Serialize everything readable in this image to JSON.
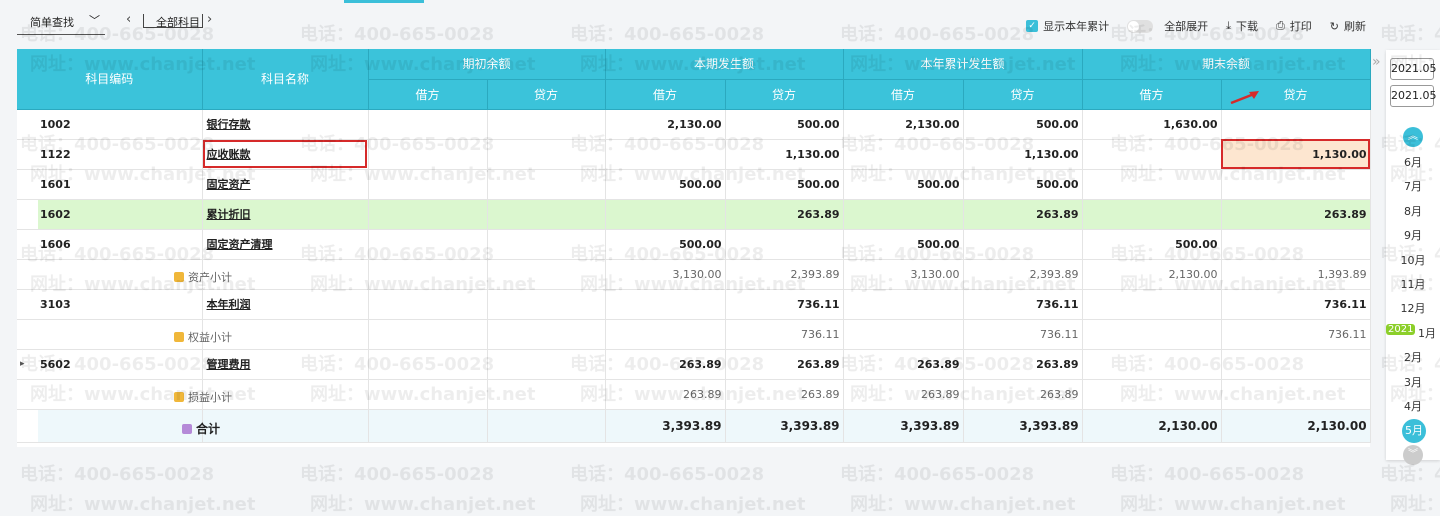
{
  "toolbar": {
    "search_label": "简单查找",
    "subject_label": "全部科目",
    "show_year_label": "显示本年累计",
    "show_year_checked": true,
    "expand_all_label": "全部展开",
    "expand_all_on": false,
    "download_label": "下载",
    "print_label": "打印",
    "refresh_label": "刷新"
  },
  "table": {
    "headers": {
      "code": "科目编码",
      "name": "科目名称",
      "groups": [
        "期初余额",
        "本期发生额",
        "本年累计发生额",
        "期末余额"
      ],
      "debit": "借方",
      "credit": "贷方"
    },
    "rows": [
      {
        "type": "account",
        "code": "1002",
        "name": "银行存款",
        "values": [
          "",
          "",
          "2,130.00",
          "500.00",
          "2,130.00",
          "500.00",
          "1,630.00",
          ""
        ]
      },
      {
        "type": "account",
        "code": "1122",
        "name": "应收账款",
        "highlight": true,
        "values": [
          "",
          "",
          "",
          "1,130.00",
          "",
          "1,130.00",
          "",
          "1,130.00"
        ]
      },
      {
        "type": "account",
        "code": "1601",
        "name": "固定资产",
        "values": [
          "",
          "",
          "500.00",
          "500.00",
          "500.00",
          "500.00",
          "",
          ""
        ]
      },
      {
        "type": "account",
        "code": "1602",
        "name": "累计折旧",
        "green": true,
        "values": [
          "",
          "",
          "",
          "263.89",
          "",
          "263.89",
          "",
          "263.89"
        ]
      },
      {
        "type": "account",
        "code": "1606",
        "name": "固定资产清理",
        "values": [
          "",
          "",
          "500.00",
          "",
          "500.00",
          "",
          "500.00",
          ""
        ]
      },
      {
        "type": "subtotal",
        "code": "",
        "name": "资产小计",
        "values": [
          "",
          "",
          "3,130.00",
          "2,393.89",
          "3,130.00",
          "2,393.89",
          "2,130.00",
          "1,393.89"
        ]
      },
      {
        "type": "account",
        "code": "3103",
        "name": "本年利润",
        "values": [
          "",
          "",
          "",
          "736.11",
          "",
          "736.11",
          "",
          "736.11"
        ]
      },
      {
        "type": "subtotal",
        "code": "",
        "name": "权益小计",
        "values": [
          "",
          "",
          "",
          "736.11",
          "",
          "736.11",
          "",
          "736.11"
        ]
      },
      {
        "type": "account",
        "code": "5602",
        "name": "管理费用",
        "expandable": true,
        "values": [
          "",
          "",
          "263.89",
          "263.89",
          "263.89",
          "263.89",
          "",
          ""
        ]
      },
      {
        "type": "subtotal",
        "code": "",
        "name": "损益小计",
        "values": [
          "",
          "",
          "263.89",
          "263.89",
          "263.89",
          "263.89",
          "",
          ""
        ]
      }
    ],
    "total": {
      "name": "合计",
      "values": [
        "",
        "",
        "3,393.89",
        "3,393.89",
        "3,393.89",
        "3,393.89",
        "2,130.00",
        "2,130.00"
      ]
    }
  },
  "period": {
    "start": "2021.05",
    "end": "2021.05",
    "year_badge": "2021",
    "months": [
      "6月",
      "7月",
      "8月",
      "9月",
      "10月",
      "11月",
      "12月",
      "1月",
      "2月",
      "3月",
      "4月"
    ],
    "selected": "5月"
  },
  "watermark": {
    "phone": "电话：400-665-0028",
    "site": "网址：www.chanjet.net"
  },
  "colors": {
    "header": "#3bc3da",
    "highlight_border": "#d62a2a",
    "highlight_fill": "#fde6d0",
    "green_row": "#dbf7cf"
  }
}
